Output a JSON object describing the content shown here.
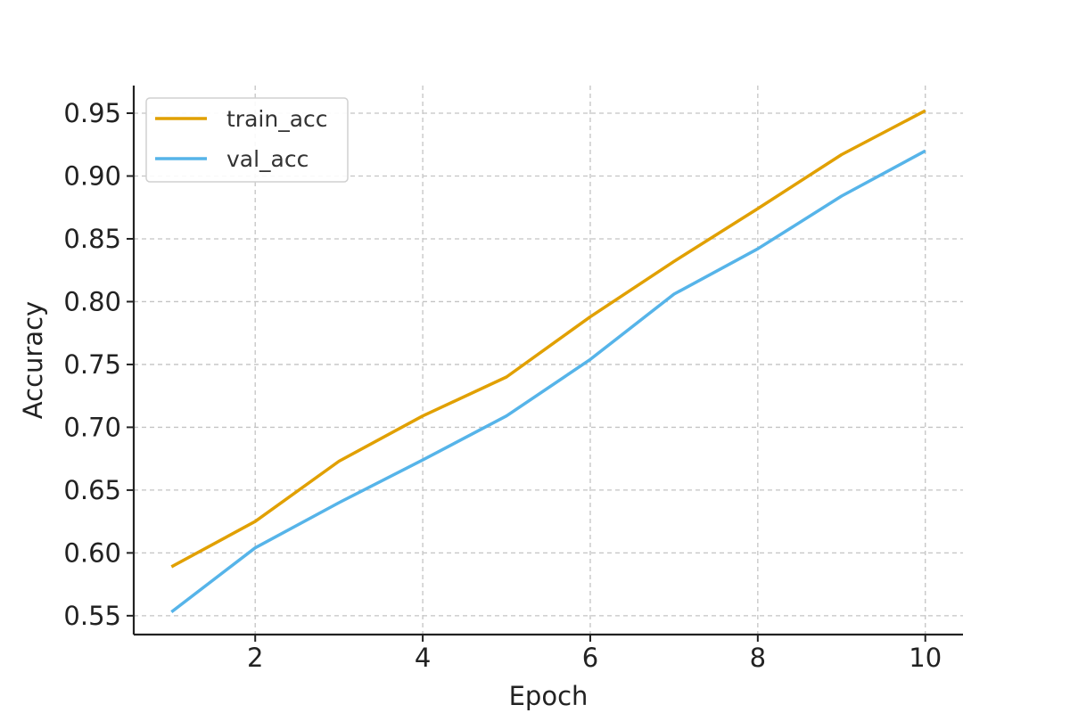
{
  "chart_data": {
    "type": "line",
    "title": "",
    "xlabel": "Epoch",
    "ylabel": "Accuracy",
    "xlim": [
      0.55,
      10.45
    ],
    "ylim": [
      0.535,
      0.972
    ],
    "xticks": [
      2,
      4,
      6,
      8,
      10
    ],
    "xtick_labels": [
      "2",
      "4",
      "6",
      "8",
      "10"
    ],
    "yticks": [
      0.55,
      0.6,
      0.65,
      0.7,
      0.75,
      0.8,
      0.85,
      0.9,
      0.95
    ],
    "ytick_labels": [
      "0.55",
      "0.60",
      "0.65",
      "0.70",
      "0.75",
      "0.80",
      "0.85",
      "0.90",
      "0.95"
    ],
    "grid": true,
    "legend_position": "top-left",
    "x": [
      1,
      2,
      3,
      4,
      5,
      6,
      7,
      8,
      9,
      10
    ],
    "series": [
      {
        "name": "train_acc",
        "color": "#E1A000",
        "values": [
          0.589,
          0.625,
          0.673,
          0.709,
          0.74,
          0.788,
          0.832,
          0.874,
          0.917,
          0.952
        ]
      },
      {
        "name": "val_acc",
        "color": "#56B4E9",
        "values": [
          0.553,
          0.604,
          0.64,
          0.674,
          0.709,
          0.754,
          0.806,
          0.842,
          0.884,
          0.92
        ]
      }
    ]
  }
}
